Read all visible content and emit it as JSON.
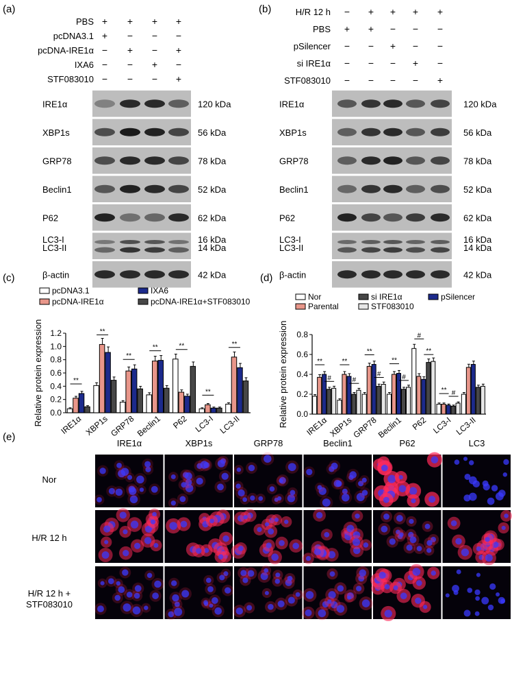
{
  "panels": {
    "a": "(a)",
    "b": "(b)",
    "c": "(c)",
    "d": "(d)",
    "e": "(e)"
  },
  "blot_a": {
    "conditions": [
      {
        "label": "PBS",
        "signs": [
          "+",
          "+",
          "+",
          "+"
        ]
      },
      {
        "label": "pcDNA3.1",
        "signs": [
          "+",
          "−",
          "−",
          "−"
        ]
      },
      {
        "label": "pcDNA-IRE1α",
        "signs": [
          "−",
          "+",
          "−",
          "+"
        ]
      },
      {
        "label": "IXA6",
        "signs": [
          "−",
          "−",
          "+",
          "−"
        ]
      },
      {
        "label": "STF083010",
        "signs": [
          "−",
          "−",
          "−",
          "+"
        ]
      }
    ],
    "proteins": [
      {
        "name": "IRE1α",
        "kda": "120 kDa"
      },
      {
        "name": "XBP1s",
        "kda": "56 kDa"
      },
      {
        "name": "GRP78",
        "kda": "78 kDa"
      },
      {
        "name": "Beclin1",
        "kda": "52 kDa"
      },
      {
        "name": "P62",
        "kda": "62 kDa"
      },
      {
        "name": "LC3-I",
        "name2": "LC3-II",
        "kda": "16 kDa",
        "kda2": "14 kDa"
      },
      {
        "name": "β-actin",
        "kda": "42 kDa"
      }
    ],
    "intensity": [
      [
        0.35,
        0.85,
        0.85,
        0.55
      ],
      [
        0.65,
        0.95,
        0.9,
        0.7
      ],
      [
        0.65,
        0.85,
        0.85,
        0.7
      ],
      [
        0.6,
        0.9,
        0.85,
        0.7
      ],
      [
        0.9,
        0.45,
        0.5,
        0.85
      ],
      [
        0.5,
        0.8,
        0.75,
        0.55
      ],
      [
        0.85,
        0.85,
        0.85,
        0.85
      ]
    ]
  },
  "blot_b": {
    "conditions": [
      {
        "label": "H/R 12 h",
        "signs": [
          "−",
          "+",
          "+",
          "+",
          "+"
        ]
      },
      {
        "label": "PBS",
        "signs": [
          "+",
          "+",
          "−",
          "−",
          "−"
        ]
      },
      {
        "label": "pSilencer",
        "signs": [
          "−",
          "−",
          "+",
          "−",
          "−"
        ]
      },
      {
        "label": "si IRE1α",
        "signs": [
          "−",
          "−",
          "−",
          "+",
          "−"
        ]
      },
      {
        "label": "STF083010",
        "signs": [
          "−",
          "−",
          "−",
          "−",
          "+"
        ]
      }
    ],
    "proteins": [
      {
        "name": "IRE1α",
        "kda": "120 kDa"
      },
      {
        "name": "XBP1s",
        "kda": "56 kDa"
      },
      {
        "name": "GRP78",
        "kda": "78 kDa"
      },
      {
        "name": "Beclin1",
        "kda": "52 kDa"
      },
      {
        "name": "P62",
        "kda": "62 kDa"
      },
      {
        "name": "LC3-I",
        "name2": "LC3-II",
        "kda": "16 kDa",
        "kda2": "14 kDa"
      },
      {
        "name": "β-actin",
        "kda": "42 kDa"
      }
    ],
    "intensity": [
      [
        0.6,
        0.8,
        0.85,
        0.6,
        0.7
      ],
      [
        0.55,
        0.8,
        0.85,
        0.6,
        0.75
      ],
      [
        0.55,
        0.85,
        0.9,
        0.6,
        0.7
      ],
      [
        0.5,
        0.8,
        0.85,
        0.55,
        0.65
      ],
      [
        0.9,
        0.7,
        0.6,
        0.75,
        0.85
      ],
      [
        0.6,
        0.7,
        0.75,
        0.65,
        0.7
      ],
      [
        0.85,
        0.85,
        0.85,
        0.85,
        0.85
      ]
    ]
  },
  "chart_data": [
    {
      "type": "bar",
      "panel": "(c)",
      "ylabel": "Relative protein expression",
      "ylim": [
        0.0,
        1.2
      ],
      "yticks": [
        "0.0",
        "0.2",
        "0.4",
        "0.6",
        "0.8",
        "1.0",
        "1.2"
      ],
      "categories": [
        "IRE1α",
        "XBP1s",
        "GRP78",
        "Beclin1",
        "P62",
        "LC3-I",
        "LC3-II"
      ],
      "legend": [
        "pcDNA3.1",
        "pcDNA-IRE1α",
        "IXA6",
        "pcDNA-IRE1α+STF083010"
      ],
      "series": [
        {
          "name": "pcDNA3.1",
          "color": "#ffffff",
          "values": [
            0.06,
            0.41,
            0.16,
            0.27,
            0.81,
            0.06,
            0.13
          ]
        },
        {
          "name": "pcDNA-IRE1α",
          "color": "#e8968a",
          "values": [
            0.22,
            1.03,
            0.63,
            0.78,
            0.31,
            0.12,
            0.84
          ]
        },
        {
          "name": "IXA6",
          "color": "#1c2a8c",
          "values": [
            0.29,
            0.91,
            0.66,
            0.79,
            0.25,
            0.07,
            0.68
          ]
        },
        {
          "name": "pcDNA-IRE1α+STF083010",
          "color": "#474747",
          "values": [
            0.09,
            0.49,
            0.36,
            0.37,
            0.7,
            0.07,
            0.48
          ]
        }
      ],
      "annotations": [
        "**",
        "**",
        "**",
        "**",
        "**",
        "**",
        "**"
      ]
    },
    {
      "type": "bar",
      "panel": "(d)",
      "ylabel": "Relative protein expression",
      "ylim": [
        0.0,
        0.8
      ],
      "yticks": [
        "0.0",
        "0.2",
        "0.4",
        "0.6",
        "0.8"
      ],
      "categories": [
        "IRE1α",
        "XBP1s",
        "GRP78",
        "Beclin1",
        "P62",
        "LC3-I",
        "LC3-II"
      ],
      "legend": [
        "Nor",
        "Parental",
        "si IRE1α",
        "STF083010",
        "pSilencer"
      ],
      "series": [
        {
          "name": "Nor",
          "color": "#ffffff",
          "values": [
            0.18,
            0.14,
            0.2,
            0.2,
            0.66,
            0.1,
            0.2
          ]
        },
        {
          "name": "Parental",
          "color": "#e8968a",
          "values": [
            0.37,
            0.4,
            0.48,
            0.4,
            0.38,
            0.1,
            0.47
          ]
        },
        {
          "name": "pSilencer",
          "color": "#1c2a8c",
          "values": [
            0.4,
            0.38,
            0.5,
            0.41,
            0.35,
            0.09,
            0.5
          ]
        },
        {
          "name": "si IRE1α",
          "color": "#474747",
          "values": [
            0.25,
            0.2,
            0.28,
            0.25,
            0.52,
            0.08,
            0.27
          ]
        },
        {
          "name": "STF083010",
          "color": "#e6e6e6",
          "values": [
            0.26,
            0.24,
            0.3,
            0.27,
            0.53,
            0.11,
            0.28
          ]
        }
      ],
      "annotations": [
        "**",
        "#",
        "**",
        "#",
        "**",
        "#",
        "**",
        "#",
        "#",
        "**",
        "**",
        "#"
      ]
    }
  ],
  "micrograph": {
    "columns": [
      "IRE1α",
      "XBP1s",
      "GRP78",
      "Beclin1",
      "P62",
      "LC3"
    ],
    "rows": [
      "Nor",
      "H/R 12 h",
      "H/R 12 h +",
      "STF083010"
    ],
    "red_level": [
      [
        0.2,
        0.25,
        0.25,
        0.2,
        0.95,
        0.1
      ],
      [
        0.7,
        0.75,
        0.65,
        0.55,
        0.35,
        0.7
      ],
      [
        0.25,
        0.25,
        0.35,
        0.4,
        0.8,
        0.15
      ]
    ]
  }
}
